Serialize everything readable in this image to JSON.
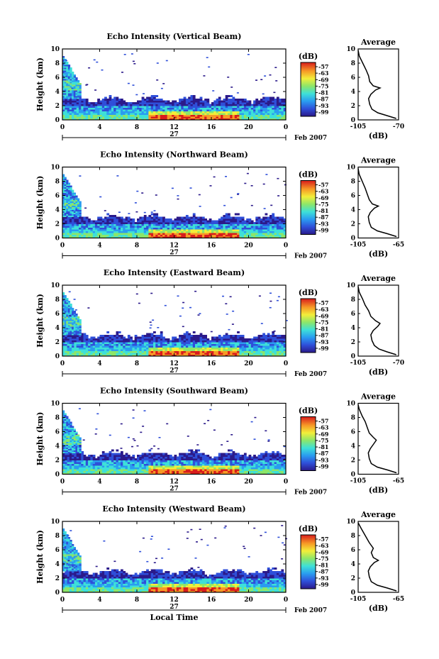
{
  "chart_data": [
    {
      "type": "heatmap",
      "title": "Echo Intensity (Vertical Beam)",
      "ylabel": "Height (km)",
      "xlabel": "",
      "x_ticks": [
        "0",
        "4",
        "8",
        "12",
        "16",
        "20",
        "0"
      ],
      "y_ticks": [
        "0",
        "2",
        "4",
        "6",
        "8",
        "10"
      ],
      "xlim": [
        0,
        24
      ],
      "ylim": [
        0,
        10
      ],
      "date_label": "27",
      "month_label": "Feb 2007",
      "colorbar": {
        "unit": "(dB)",
        "ticks": [
          "-57",
          "-63",
          "-69",
          "-75",
          "-81",
          "-87",
          "-93",
          "-99"
        ]
      },
      "average_profile": {
        "title": "Average",
        "xlabel": "(dB)",
        "x_ticks": [
          "-105",
          "-70"
        ],
        "xlim": [
          -105,
          -70
        ],
        "y_ticks": [
          "0",
          "2",
          "4",
          "6",
          "8",
          "10"
        ],
        "points": [
          [
            -72,
            0.2
          ],
          [
            -80,
            0.6
          ],
          [
            -88,
            1.0
          ],
          [
            -93,
            1.5
          ],
          [
            -95,
            2.2
          ],
          [
            -96,
            3.0
          ],
          [
            -94,
            3.6
          ],
          [
            -90,
            4.2
          ],
          [
            -86,
            4.5
          ],
          [
            -92,
            4.8
          ],
          [
            -95,
            5.4
          ],
          [
            -96,
            6.2
          ],
          [
            -98,
            7.0
          ],
          [
            -101,
            8.0
          ],
          [
            -104,
            9.0
          ],
          [
            -105,
            9.8
          ]
        ]
      }
    },
    {
      "type": "heatmap",
      "title": "Echo Intensity (Northward Beam)",
      "ylabel": "Height (km)",
      "xlabel": "",
      "x_ticks": [
        "0",
        "4",
        "8",
        "12",
        "16",
        "20",
        "0"
      ],
      "y_ticks": [
        "0",
        "2",
        "4",
        "6",
        "8",
        "10"
      ],
      "xlim": [
        0,
        24
      ],
      "ylim": [
        0,
        10
      ],
      "date_label": "27",
      "month_label": "Feb 2007",
      "colorbar": {
        "unit": "(dB)",
        "ticks": [
          "-57",
          "-63",
          "-69",
          "-75",
          "-81",
          "-87",
          "-93",
          "-99"
        ]
      },
      "average_profile": {
        "title": "Average",
        "xlabel": "(dB)",
        "x_ticks": [
          "-105",
          "-65"
        ],
        "xlim": [
          -105,
          -65
        ],
        "y_ticks": [
          "0",
          "2",
          "4",
          "6",
          "8",
          "10"
        ],
        "points": [
          [
            -67,
            0.2
          ],
          [
            -76,
            0.6
          ],
          [
            -86,
            1.0
          ],
          [
            -92,
            1.5
          ],
          [
            -94,
            2.2
          ],
          [
            -95,
            3.0
          ],
          [
            -93,
            3.6
          ],
          [
            -89,
            4.2
          ],
          [
            -85,
            4.5
          ],
          [
            -91,
            4.8
          ],
          [
            -94,
            5.4
          ],
          [
            -96,
            6.2
          ],
          [
            -98,
            7.0
          ],
          [
            -101,
            8.0
          ],
          [
            -104,
            9.0
          ],
          [
            -105,
            9.8
          ]
        ]
      }
    },
    {
      "type": "heatmap",
      "title": "Echo Intensity (Eastward Beam)",
      "ylabel": "Height (km)",
      "xlabel": "",
      "x_ticks": [
        "0",
        "4",
        "8",
        "12",
        "16",
        "20",
        "0"
      ],
      "y_ticks": [
        "0",
        "2",
        "4",
        "6",
        "8",
        "10"
      ],
      "xlim": [
        0,
        24
      ],
      "ylim": [
        0,
        10
      ],
      "date_label": "27",
      "month_label": "Feb 2007",
      "colorbar": {
        "unit": "(dB)",
        "ticks": [
          "-57",
          "-63",
          "-69",
          "-75",
          "-81",
          "-87",
          "-93",
          "-99"
        ]
      },
      "average_profile": {
        "title": "Average",
        "xlabel": "(dB)",
        "x_ticks": [
          "-105",
          "-70"
        ],
        "xlim": [
          -105,
          -70
        ],
        "y_ticks": [
          "0",
          "2",
          "4",
          "6",
          "8",
          "10"
        ],
        "points": [
          [
            -72,
            0.2
          ],
          [
            -80,
            0.6
          ],
          [
            -87,
            1.0
          ],
          [
            -91,
            1.5
          ],
          [
            -93,
            2.2
          ],
          [
            -94,
            3.0
          ],
          [
            -92,
            3.6
          ],
          [
            -88,
            4.2
          ],
          [
            -86,
            4.6
          ],
          [
            -90,
            5.0
          ],
          [
            -94,
            5.6
          ],
          [
            -96,
            6.4
          ],
          [
            -99,
            7.2
          ],
          [
            -101,
            8.0
          ],
          [
            -104,
            9.0
          ],
          [
            -105,
            9.8
          ]
        ]
      }
    },
    {
      "type": "heatmap",
      "title": "Echo Intensity (Southward Beam)",
      "ylabel": "Height (km)",
      "xlabel": "",
      "x_ticks": [
        "0",
        "4",
        "8",
        "12",
        "16",
        "20",
        "0"
      ],
      "y_ticks": [
        "0",
        "2",
        "4",
        "6",
        "8",
        "10"
      ],
      "xlim": [
        0,
        24
      ],
      "ylim": [
        0,
        10
      ],
      "date_label": "27",
      "month_label": "Feb 2007",
      "colorbar": {
        "unit": "(dB)",
        "ticks": [
          "-57",
          "-63",
          "-69",
          "-75",
          "-81",
          "-87",
          "-93",
          "-99"
        ]
      },
      "average_profile": {
        "title": "Average",
        "xlabel": "(dB)",
        "x_ticks": [
          "-105",
          "-65"
        ],
        "xlim": [
          -105,
          -65
        ],
        "y_ticks": [
          "0",
          "2",
          "4",
          "6",
          "8",
          "10"
        ],
        "points": [
          [
            -67,
            0.2
          ],
          [
            -76,
            0.6
          ],
          [
            -86,
            1.0
          ],
          [
            -92,
            1.5
          ],
          [
            -94,
            2.2
          ],
          [
            -95,
            3.0
          ],
          [
            -93,
            3.6
          ],
          [
            -90,
            4.2
          ],
          [
            -87,
            4.8
          ],
          [
            -90,
            5.2
          ],
          [
            -94,
            5.8
          ],
          [
            -96,
            6.6
          ],
          [
            -98,
            7.4
          ],
          [
            -101,
            8.2
          ],
          [
            -104,
            9.2
          ],
          [
            -105,
            9.8
          ]
        ]
      }
    },
    {
      "type": "heatmap",
      "title": "Echo Intensity (Westward Beam)",
      "ylabel": "Height (km)",
      "xlabel": "Local Time",
      "x_ticks": [
        "0",
        "4",
        "8",
        "12",
        "16",
        "20",
        "0"
      ],
      "y_ticks": [
        "0",
        "2",
        "4",
        "6",
        "8",
        "10"
      ],
      "xlim": [
        0,
        24
      ],
      "ylim": [
        0,
        10
      ],
      "date_label": "27",
      "month_label": "Feb 2007",
      "colorbar": {
        "unit": "(dB)",
        "ticks": [
          "-57",
          "-63",
          "-69",
          "-75",
          "-81",
          "-87",
          "-93",
          "-99"
        ]
      },
      "average_profile": {
        "title": "Average",
        "xlabel": "(dB)",
        "x_ticks": [
          "-105",
          "-65"
        ],
        "xlim": [
          -105,
          -65
        ],
        "y_ticks": [
          "0",
          "2",
          "4",
          "6",
          "8",
          "10"
        ],
        "points": [
          [
            -67,
            0.2
          ],
          [
            -76,
            0.6
          ],
          [
            -86,
            1.0
          ],
          [
            -92,
            1.5
          ],
          [
            -94,
            2.2
          ],
          [
            -95,
            3.0
          ],
          [
            -93,
            3.6
          ],
          [
            -89,
            4.2
          ],
          [
            -85,
            4.5
          ],
          [
            -90,
            4.9
          ],
          [
            -92,
            5.6
          ],
          [
            -90,
            6.2
          ],
          [
            -94,
            7.0
          ],
          [
            -98,
            8.0
          ],
          [
            -102,
            9.0
          ],
          [
            -105,
            9.8
          ]
        ]
      }
    }
  ]
}
